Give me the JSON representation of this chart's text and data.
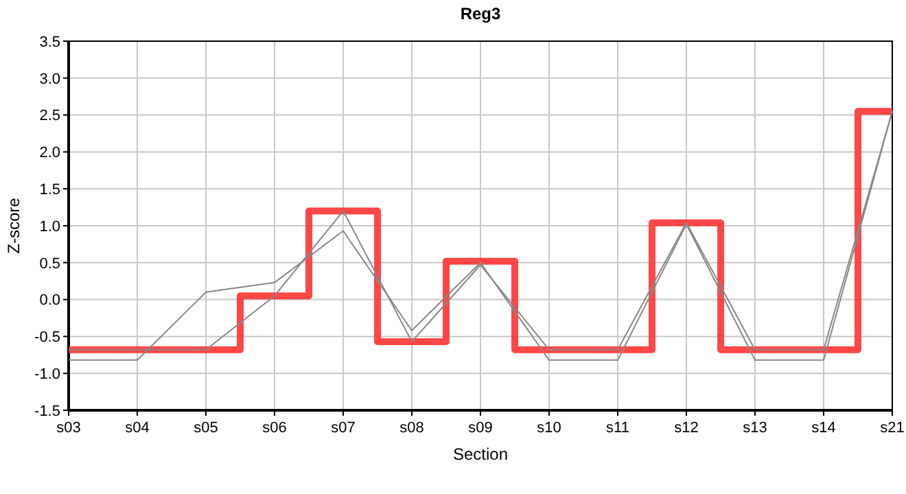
{
  "chart_data": {
    "type": "line",
    "title": "Reg3",
    "xlabel": "Section",
    "ylabel": "Z-score",
    "categories": [
      "s03",
      "s04",
      "s05",
      "s06",
      "s07",
      "s08",
      "s09",
      "s10",
      "s11",
      "s12",
      "s13",
      "s14",
      "s21"
    ],
    "series": [
      {
        "type": "step",
        "color": "#ff3333",
        "values": [
          -0.68,
          -0.68,
          -0.68,
          0.05,
          1.2,
          -0.57,
          0.52,
          -0.68,
          -0.68,
          1.04,
          -0.68,
          -0.68,
          2.55
        ]
      },
      {
        "color": "#888888",
        "values": [
          -0.82,
          -0.82,
          0.1,
          0.23,
          0.93,
          -0.42,
          0.5,
          -0.82,
          -0.82,
          1.02,
          -0.82,
          -0.82,
          2.55
        ]
      },
      {
        "color": "#888888",
        "values": [
          -0.68,
          -0.68,
          -0.68,
          0.05,
          1.2,
          -0.57,
          0.47,
          -0.68,
          -0.68,
          1.04,
          -0.68,
          -0.68,
          2.55
        ]
      }
    ],
    "ylim": [
      -1.5,
      3.5
    ],
    "yticks": [
      {
        "value": -1.5,
        "label": "-1.5"
      },
      {
        "value": -1,
        "label": "-1.0"
      },
      {
        "value": -0.5,
        "label": "-0.5"
      },
      {
        "value": 0,
        "label": "0.0"
      },
      {
        "value": 0.5,
        "label": "0.5"
      },
      {
        "value": 1,
        "label": "1.0"
      },
      {
        "value": 1.5,
        "label": "1.5"
      },
      {
        "value": 2,
        "label": "2.0"
      },
      {
        "value": 2.5,
        "label": "2.5"
      },
      {
        "value": 3,
        "label": "3.0"
      },
      {
        "value": 3.5,
        "label": "3.5"
      }
    ],
    "grid": true,
    "marker": "none",
    "line_style": "solid"
  }
}
